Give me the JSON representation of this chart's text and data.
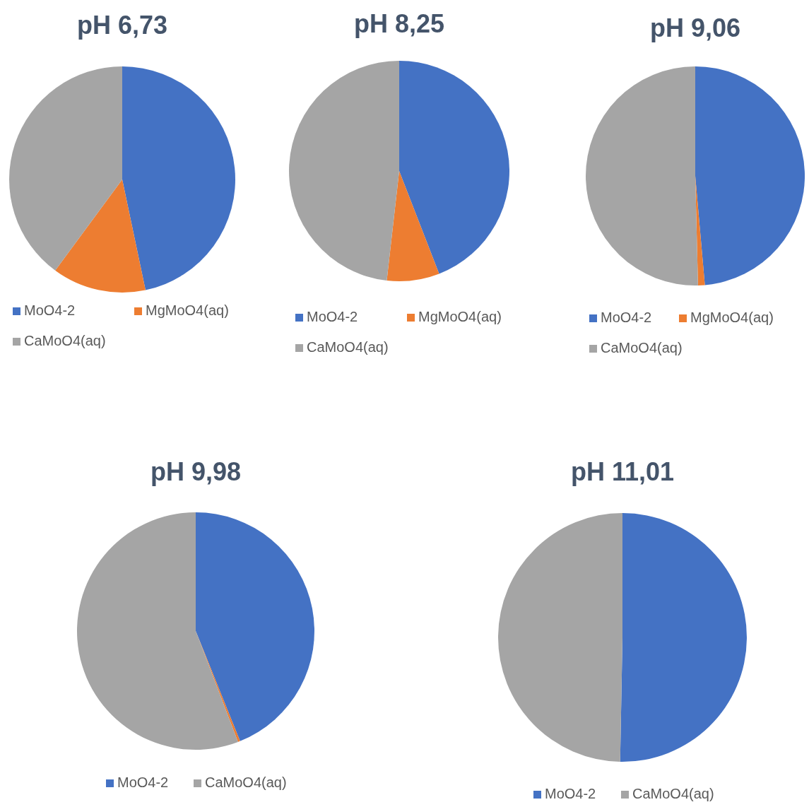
{
  "chart_data": [
    {
      "type": "pie",
      "title": "pH 6,73",
      "categories": [
        "MoO4-2",
        "MgMoO4(aq)",
        "CaMoO4(aq)"
      ],
      "values": [
        46.7,
        13.4,
        39.9
      ],
      "colors": [
        "#4472c4",
        "#ed7d31",
        "#a5a5a5"
      ],
      "legend": "bottom"
    },
    {
      "type": "pie",
      "title": "pH 8,25",
      "categories": [
        "MoO4-2",
        "MgMoO4(aq)",
        "CaMoO4(aq)"
      ],
      "values": [
        44.1,
        7.7,
        48.2
      ],
      "colors": [
        "#4472c4",
        "#ed7d31",
        "#a5a5a5"
      ],
      "legend": "bottom"
    },
    {
      "type": "pie",
      "title": "pH 9,06",
      "categories": [
        "MoO4-2",
        "MgMoO4(aq)",
        "CaMoO4(aq)"
      ],
      "values": [
        48.6,
        1.0,
        50.4
      ],
      "colors": [
        "#4472c4",
        "#ed7d31",
        "#a5a5a5"
      ],
      "legend": "bottom"
    },
    {
      "type": "pie",
      "title": "pH 9,98",
      "categories": [
        "MoO4-2",
        null,
        "CaMoO4(aq)"
      ],
      "values": [
        43.9,
        0.3,
        55.8
      ],
      "colors": [
        "#4472c4",
        "#ed7d31",
        "#a5a5a5"
      ],
      "legend": "bottom"
    },
    {
      "type": "pie",
      "title": "pH 11,01",
      "categories": [
        "MoO4-2",
        "CaMoO4(aq)"
      ],
      "values": [
        50.3,
        49.7
      ],
      "colors": [
        "#4472c4",
        "#a5a5a5"
      ],
      "legend": "bottom"
    }
  ]
}
